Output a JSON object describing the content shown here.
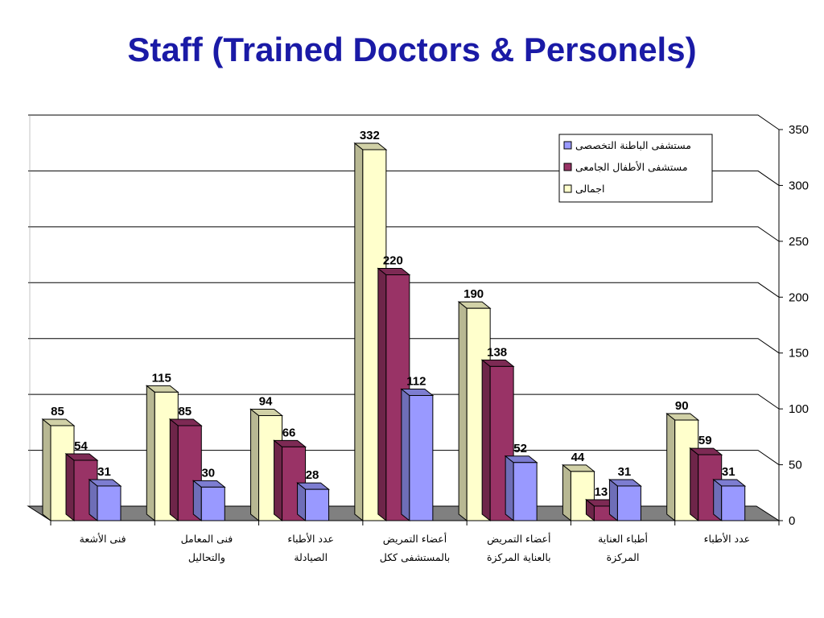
{
  "chart_data": {
    "type": "bar",
    "title": "Staff (Trained Doctors & Personels)",
    "categories": [
      [
        "فنى الأشعة"
      ],
      [
        "فنى المعامل",
        "والتحاليل"
      ],
      [
        "عدد الأطباء",
        "الصيادلة"
      ],
      [
        "أعضاء التمريض",
        "بالمستشفى ككل"
      ],
      [
        "أعضاء التمريض",
        "بالعناية المركزة"
      ],
      [
        "أطباء العناية",
        "المركزة"
      ],
      [
        "عدد الأطباء"
      ]
    ],
    "series": [
      {
        "name": "اجمالى",
        "color": "#ffffcc",
        "values": [
          85,
          115,
          94,
          332,
          190,
          44,
          90
        ]
      },
      {
        "name": "مستشفى الأطفال الجامعى",
        "color": "#993366",
        "values": [
          54,
          85,
          66,
          220,
          138,
          13,
          59
        ]
      },
      {
        "name": "مستشفى الباطنة التخصصى",
        "color": "#9999ff",
        "values": [
          31,
          30,
          28,
          112,
          52,
          31,
          31
        ]
      }
    ],
    "legend_order": [
      2,
      1,
      0
    ],
    "yaxis": {
      "min": 0,
      "max": 350,
      "step": 50,
      "position": "right"
    },
    "grid": true,
    "legend_position": "top-right"
  }
}
